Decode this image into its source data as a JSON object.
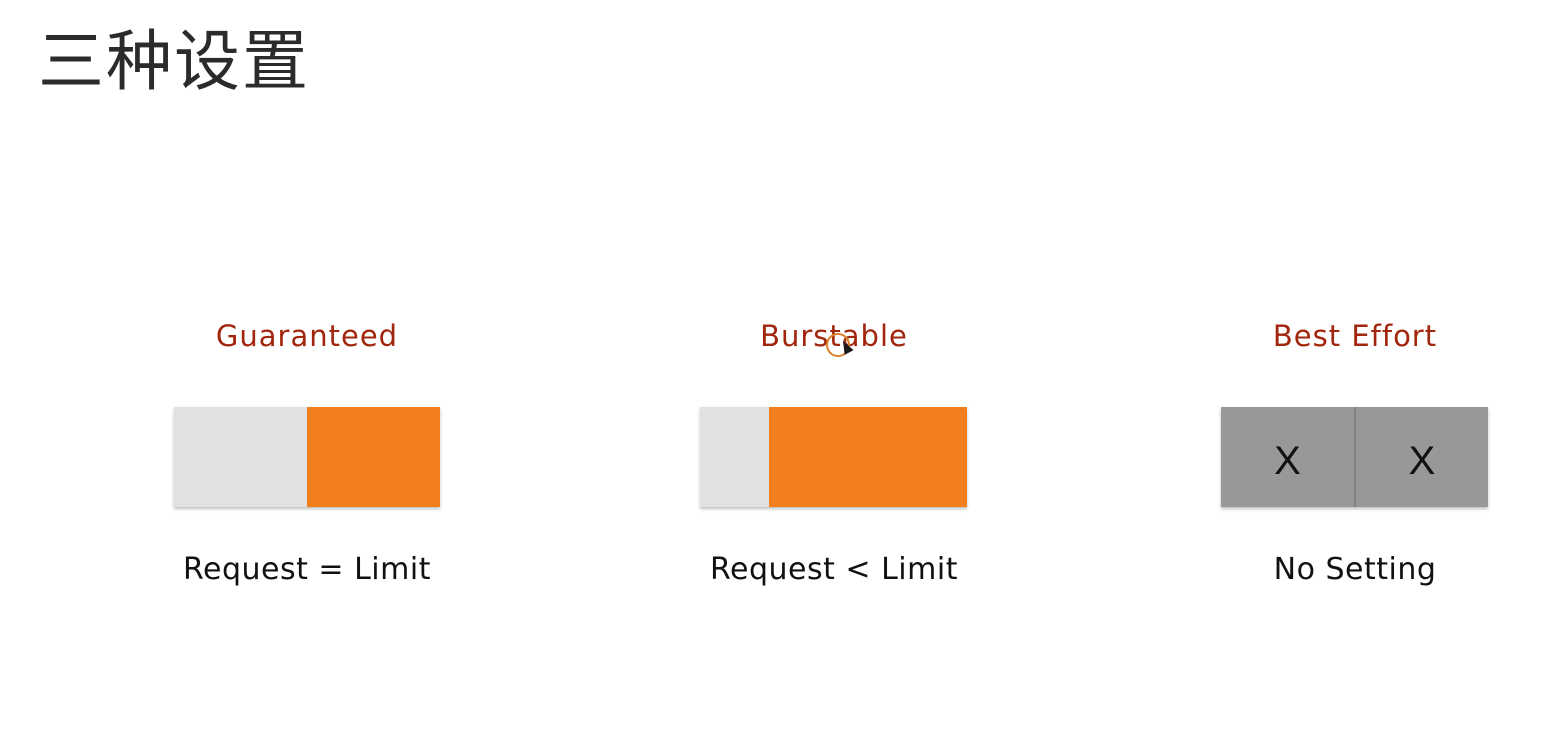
{
  "page": {
    "title": "三种设置"
  },
  "qos_classes": [
    {
      "title": "Guaranteed",
      "caption": "Request = Limit",
      "request_fraction": 0.5,
      "limit_fraction": 0.5
    },
    {
      "title": "Burstable",
      "caption": "Request < Limit",
      "request_fraction": 0.26,
      "limit_fraction": 0.74
    },
    {
      "title": "Best Effort",
      "caption": "No Setting",
      "segments": [
        "X",
        "X"
      ]
    }
  ],
  "colors": {
    "title_text": "#2b2b2b",
    "class_title": "#a1260d",
    "request": "#e1e1e2",
    "limit": "#f27f1e",
    "unset": "#979998"
  },
  "icons": {
    "cursor": "mouse-pointer-icon"
  }
}
